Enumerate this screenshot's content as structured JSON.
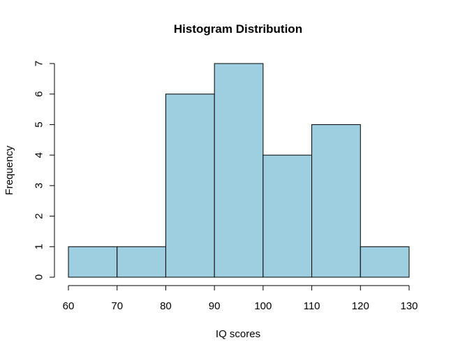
{
  "chart_data": {
    "type": "bar",
    "title": "Histogram Distribution",
    "xlabel": "IQ scores",
    "ylabel": "Frequency",
    "bins": [
      {
        "from": 60,
        "to": 70,
        "count": 1
      },
      {
        "from": 70,
        "to": 80,
        "count": 1
      },
      {
        "from": 80,
        "to": 90,
        "count": 6
      },
      {
        "from": 90,
        "to": 100,
        "count": 7
      },
      {
        "from": 100,
        "to": 110,
        "count": 4
      },
      {
        "from": 110,
        "to": 120,
        "count": 5
      },
      {
        "from": 120,
        "to": 130,
        "count": 1
      }
    ],
    "xlim": [
      60,
      130
    ],
    "ylim": [
      0,
      7
    ],
    "x_ticks": [
      "60",
      "70",
      "80",
      "90",
      "100",
      "110",
      "120",
      "130"
    ],
    "y_ticks": [
      "0",
      "1",
      "2",
      "3",
      "4",
      "5",
      "6",
      "7"
    ],
    "bar_color": "#9ecfe0",
    "edge_color": "#000000",
    "grid": false
  }
}
